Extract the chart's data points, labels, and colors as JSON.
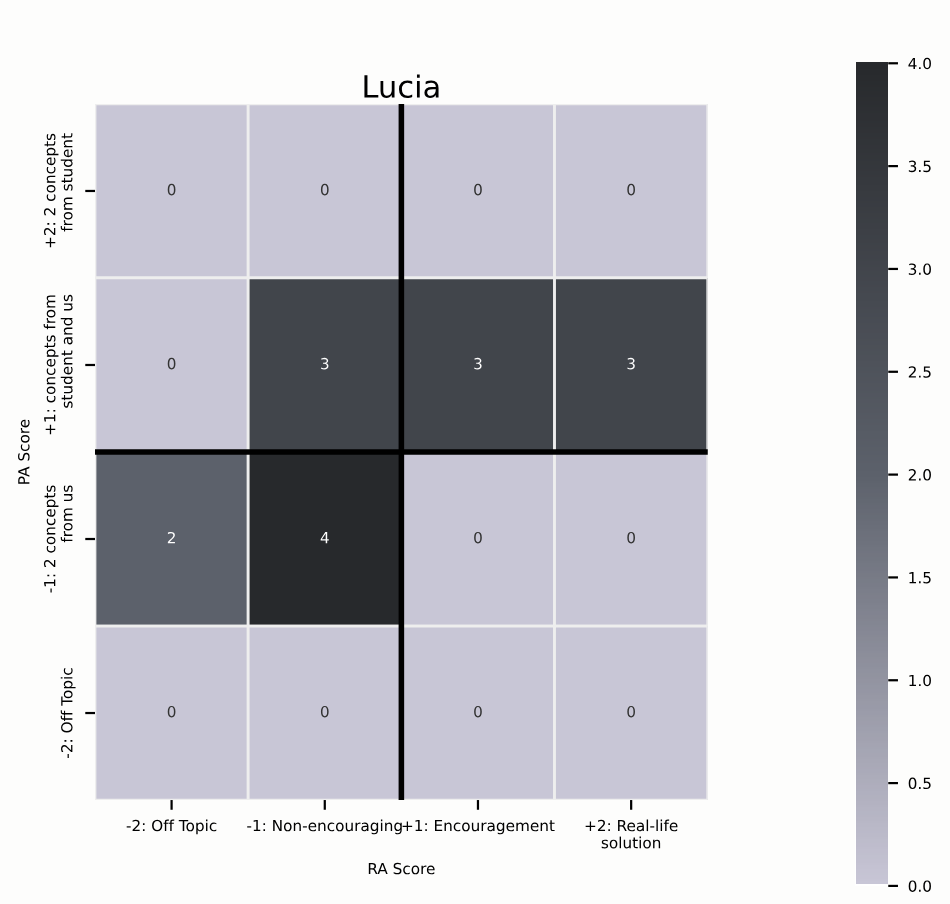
{
  "chart_data": {
    "type": "heatmap",
    "title": "Lucia",
    "xlabel": "RA Score",
    "ylabel": "PA Score",
    "categories": [
      "-2: Off Topic",
      "-1: Non-encouraging",
      "+1: Encouragement",
      "+2: Real-life\nsolution"
    ],
    "y_categories": [
      "+2: 2 concepts\nfrom student",
      "+1: concepts from\nstudent and us",
      "-1: 2 concepts\nfrom us",
      "-2: Off Topic"
    ],
    "cells": [
      [
        0,
        0,
        0,
        0
      ],
      [
        0,
        3,
        3,
        3
      ],
      [
        2,
        4,
        0,
        0
      ],
      [
        0,
        0,
        0,
        0
      ]
    ],
    "data_labels": true,
    "colors": [
      "#c8c6d6",
      "#5c616b",
      "#27292c"
    ],
    "clim": [
      0,
      4
    ],
    "cticks": [
      {
        "value": 0,
        "label": "0.0"
      },
      {
        "value": 0.5,
        "label": "0.5"
      },
      {
        "value": 1,
        "label": "1.0"
      },
      {
        "value": 1.5,
        "label": "1.5"
      },
      {
        "value": 2,
        "label": "2.0"
      },
      {
        "value": 2.5,
        "label": "2.5"
      },
      {
        "value": 3,
        "label": "3.0"
      },
      {
        "value": 3.5,
        "label": "3.5"
      },
      {
        "value": 4,
        "label": "4.0"
      }
    ]
  }
}
